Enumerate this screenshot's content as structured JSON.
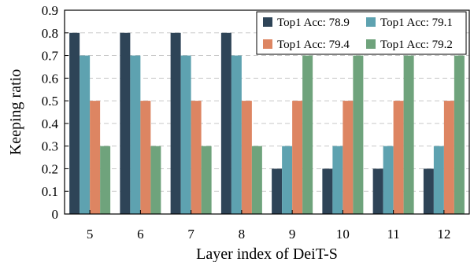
{
  "chart_data": {
    "type": "bar",
    "title": "",
    "xlabel": "Layer index of DeiT-S",
    "ylabel": "Keeping ratio",
    "categories": [
      "5",
      "6",
      "7",
      "8",
      "9",
      "10",
      "11",
      "12"
    ],
    "ylim": [
      0,
      0.9
    ],
    "yticks": [
      "0",
      "0.1",
      "0.2",
      "0.3",
      "0.4",
      "0.5",
      "0.6",
      "0.7",
      "0.8",
      "0.9"
    ],
    "grid": true,
    "legend_position": "top-right",
    "series": [
      {
        "name": "Top1 Acc: 78.9",
        "color": "#2e4457",
        "values": [
          0.8,
          0.8,
          0.8,
          0.8,
          0.2,
          0.2,
          0.2,
          0.2
        ]
      },
      {
        "name": "Top1 Acc: 79.1",
        "color": "#5ea2b0",
        "values": [
          0.7,
          0.7,
          0.7,
          0.7,
          0.3,
          0.3,
          0.3,
          0.3
        ]
      },
      {
        "name": "Top1 Acc: 79.4",
        "color": "#dd8562",
        "values": [
          0.5,
          0.5,
          0.5,
          0.5,
          0.5,
          0.5,
          0.5,
          0.5
        ]
      },
      {
        "name": "Top1 Acc: 79.2",
        "color": "#6fa37c",
        "values": [
          0.3,
          0.3,
          0.3,
          0.3,
          0.7,
          0.7,
          0.7,
          0.7
        ]
      }
    ]
  }
}
